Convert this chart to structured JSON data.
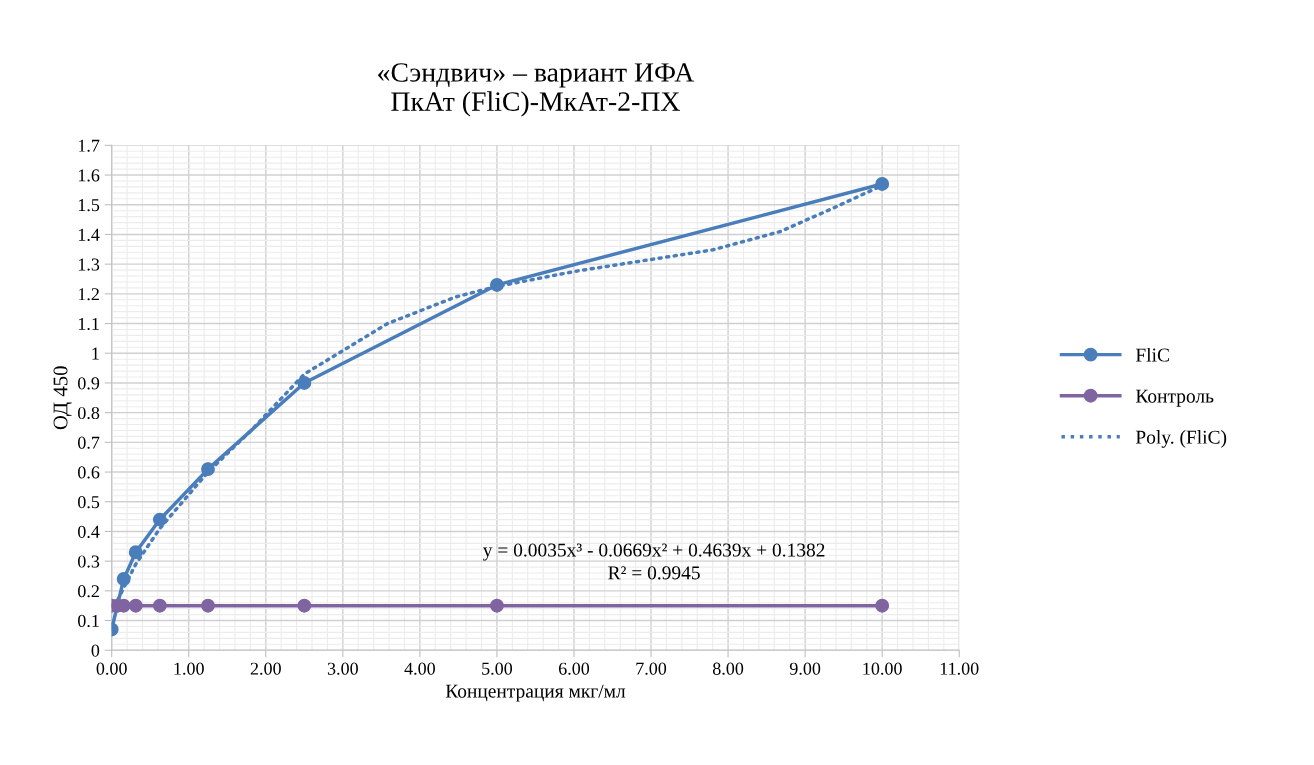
{
  "chart_data": {
    "type": "line",
    "title": "«Сэндвич» – вариант ИФА\nПкАт (FliC)-МкАт-2-ПХ",
    "xlabel": "Концентрация мкг/мл",
    "ylabel": "ОД 450",
    "xlim": [
      0,
      11
    ],
    "ylim": [
      0,
      1.7
    ],
    "xticks": [
      {
        "value": 0,
        "label": "0.00"
      },
      {
        "value": 1,
        "label": "1.00"
      },
      {
        "value": 2,
        "label": "2.00"
      },
      {
        "value": 3,
        "label": "3.00"
      },
      {
        "value": 4,
        "label": "4.00"
      },
      {
        "value": 5,
        "label": "5.00"
      },
      {
        "value": 6,
        "label": "6.00"
      },
      {
        "value": 7,
        "label": "7.00"
      },
      {
        "value": 8,
        "label": "8.00"
      },
      {
        "value": 9,
        "label": "9.00"
      },
      {
        "value": 10,
        "label": "10.00"
      },
      {
        "value": 11,
        "label": "11.00"
      }
    ],
    "yticks": [
      0,
      0.1,
      0.2,
      0.3,
      0.4,
      0.5,
      0.6,
      0.7,
      0.8,
      0.9,
      1,
      1.1,
      1.2,
      1.3,
      1.4,
      1.5,
      1.6,
      1.7
    ],
    "grid": true,
    "legend": "right",
    "marker": "circle",
    "line_style": "solid",
    "series": [
      {
        "name": "FliC",
        "color": "#4a7ebb",
        "x": [
          0,
          0.156,
          0.3125,
          0.625,
          1.25,
          2.5,
          5,
          10
        ],
        "values": [
          0.07,
          0.24,
          0.33,
          0.44,
          0.61,
          0.9,
          1.23,
          1.57
        ]
      },
      {
        "name": "Контроль",
        "color": "#8064a2",
        "x": [
          0,
          0.078,
          0.156,
          0.3125,
          0.625,
          1.25,
          2.5,
          5,
          10
        ],
        "values": [
          0.15,
          0.15,
          0.15,
          0.15,
          0.15,
          0.15,
          0.15,
          0.15,
          0.15
        ]
      },
      {
        "name": "Poly. (FliC)",
        "color": "#4a7ebb",
        "marker": "none",
        "line_style": "dotted",
        "x": [
          0.08,
          0.156,
          0.3125,
          0.625,
          1.25,
          1.81,
          2.5,
          3.58,
          4.47,
          5,
          6.02,
          7.8,
          8.68,
          9.35,
          10
        ],
        "values": [
          0.17,
          0.21,
          0.29,
          0.41,
          0.6,
          0.74,
          0.93,
          1.1,
          1.19,
          1.225,
          1.276,
          1.348,
          1.41,
          1.487,
          1.565
        ]
      }
    ],
    "annotations": [
      "y = 0.0035x³ - 0.0669x² + 0.4639x + 0.1382",
      "R² = 0.9945"
    ]
  }
}
